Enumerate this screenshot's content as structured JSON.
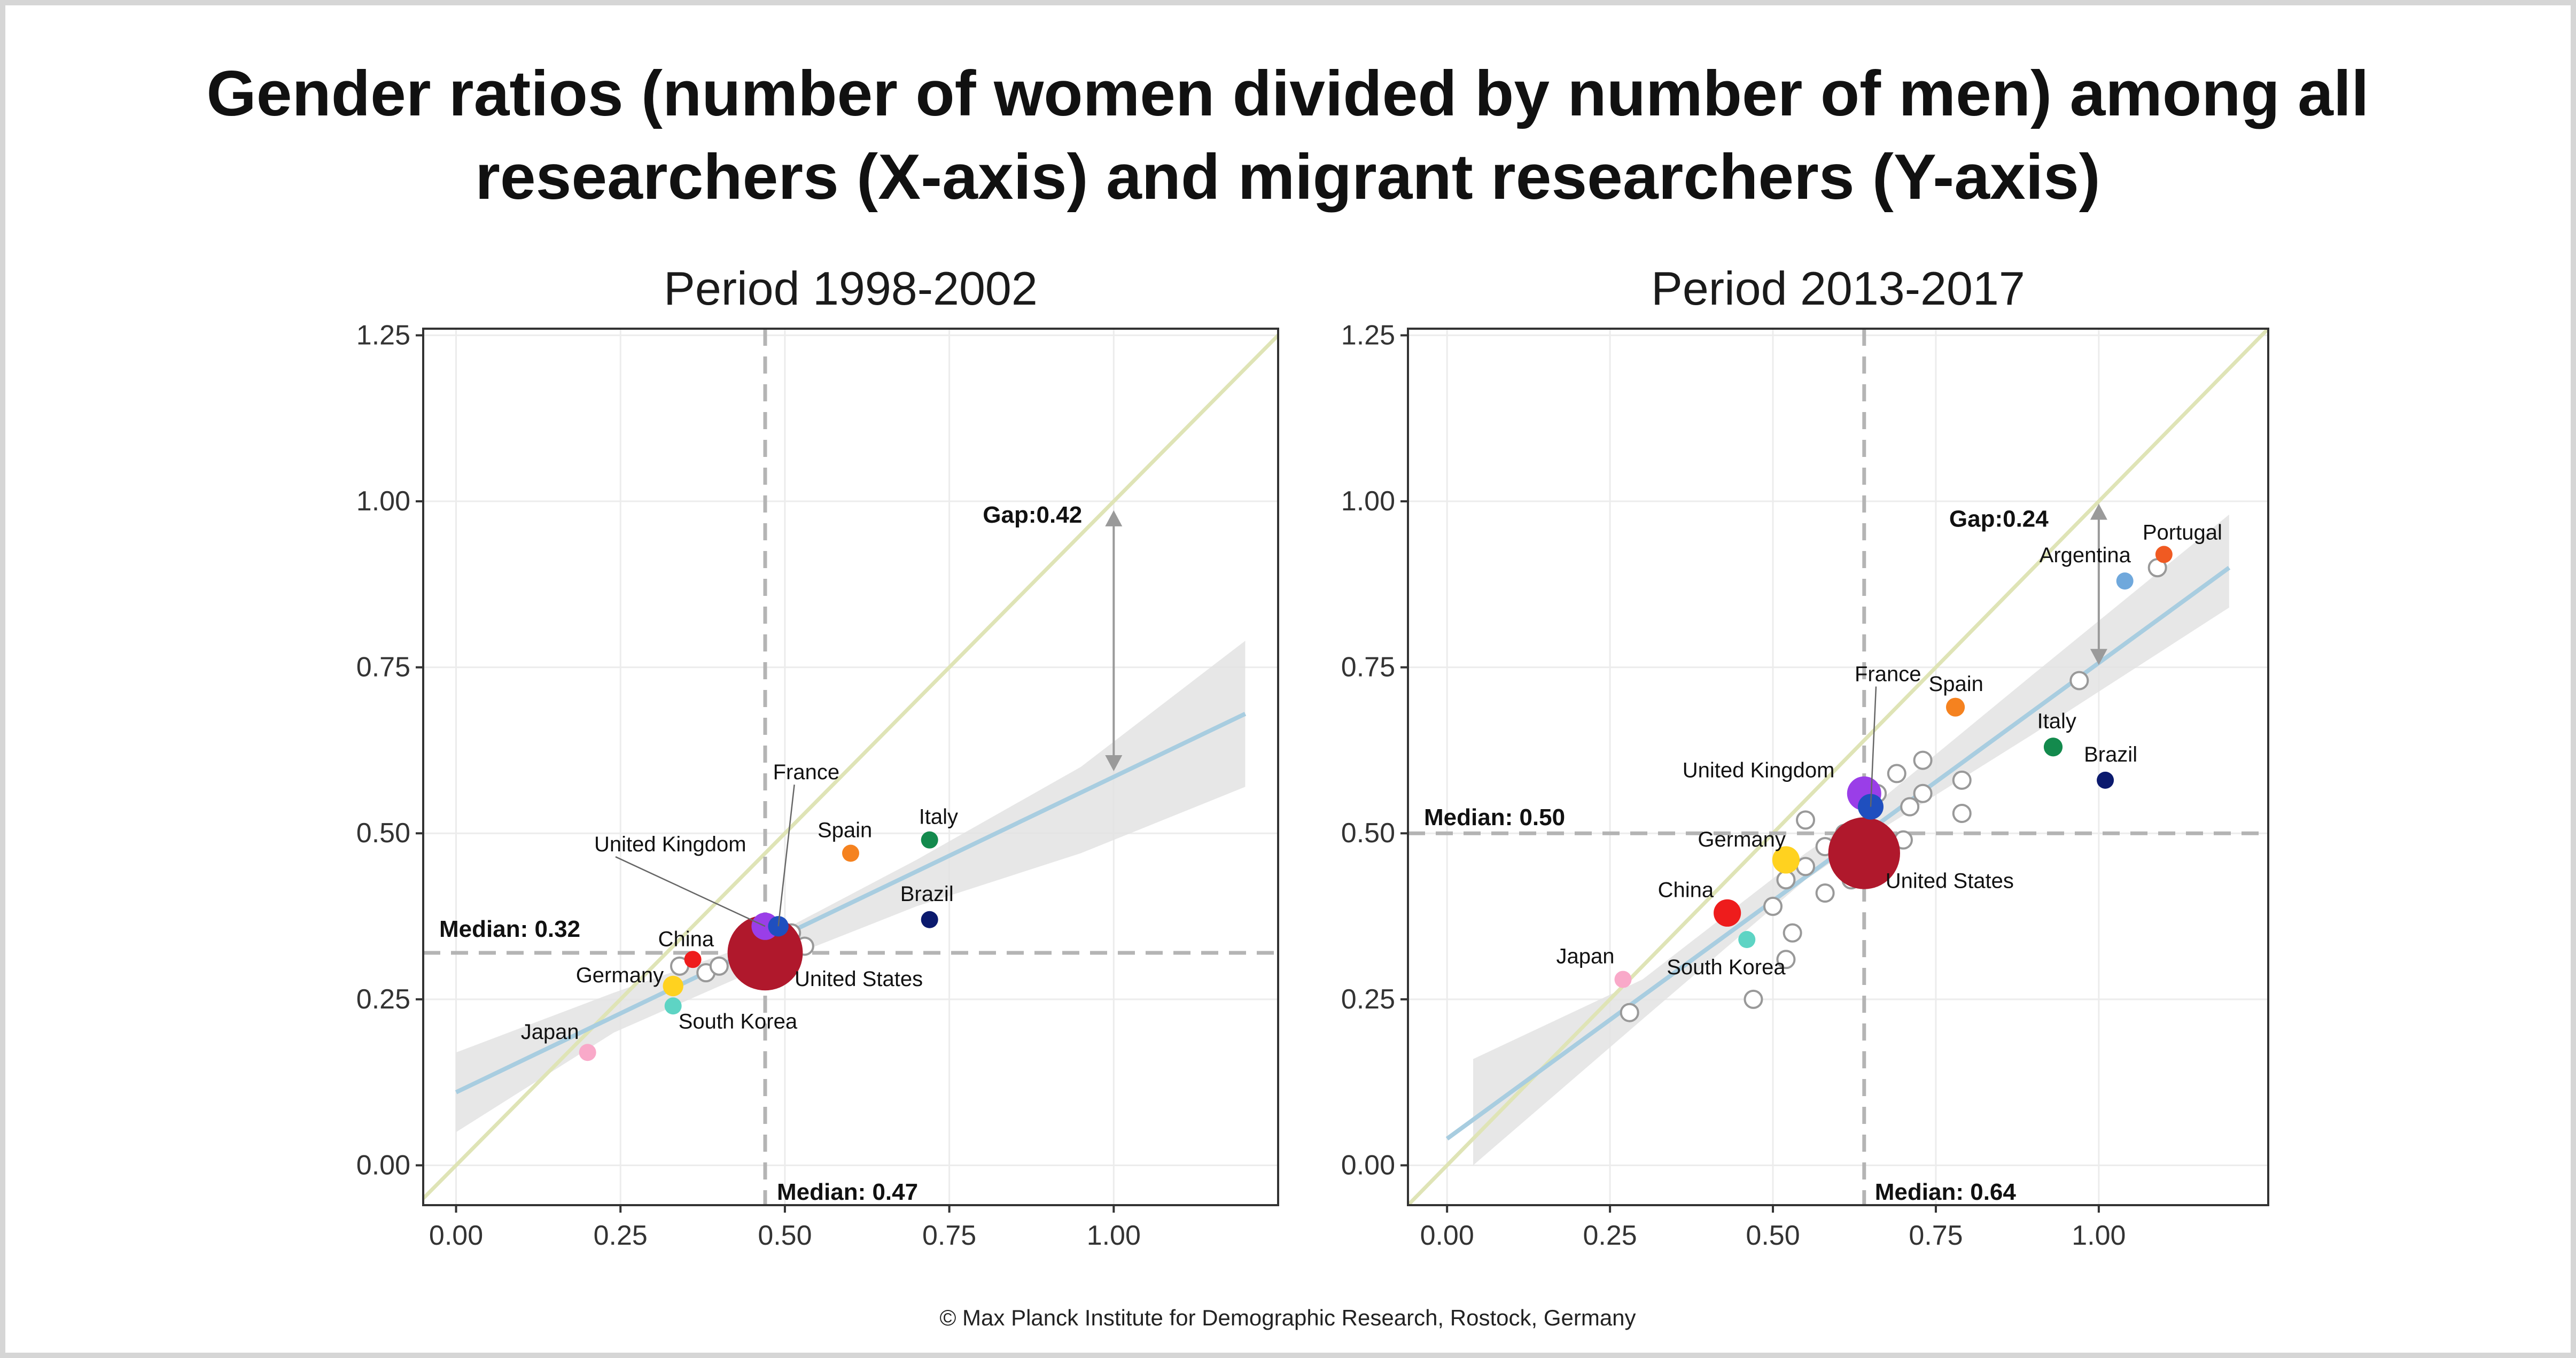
{
  "title_lines": [
    "Gender ratios (number of women divided by number of men) among all",
    "researchers (X-axis) and migrant researchers (Y-axis)"
  ],
  "footer": "© Max Planck Institute for Demographic Research, Rostock, Germany",
  "colors": {
    "identity_line": "#dfe4b6",
    "regression_line": "#a8cde0",
    "confidence_band": "#e3e3e3",
    "median_line": "#b4b4b4",
    "gap_arrow": "#9a9a9a",
    "panel_border": "#333333",
    "grid": "#ececec",
    "other_country_stroke": "#999999"
  },
  "chart_data": [
    {
      "type": "scatter",
      "title": "Period 1998-2002",
      "xlim": [
        -0.05,
        1.25
      ],
      "ylim": [
        -0.06,
        1.26
      ],
      "x_ticks": [
        0,
        0.25,
        0.5,
        0.75,
        1.0
      ],
      "x_tick_labels": [
        "0.00",
        "0.25",
        "0.50",
        "0.75",
        "1.00"
      ],
      "y_ticks": [
        0,
        0.25,
        0.5,
        0.75,
        1.0,
        1.25
      ],
      "y_tick_labels": [
        "0.00",
        "0.25",
        "0.50",
        "0.75",
        "1.00",
        "1.25"
      ],
      "grid": true,
      "identity_line": true,
      "median_x": {
        "value": 0.47,
        "label": "Median: 0.47"
      },
      "median_y": {
        "value": 0.32,
        "label": "Median: 0.32"
      },
      "regression": {
        "x": [
          0.0,
          1.2
        ],
        "y": [
          0.11,
          0.68
        ]
      },
      "confidence_band": {
        "x": [
          0.0,
          0.24,
          0.47,
          0.7,
          0.95,
          1.2
        ],
        "lower": [
          0.05,
          0.2,
          0.3,
          0.39,
          0.47,
          0.57
        ],
        "upper": [
          0.17,
          0.26,
          0.34,
          0.46,
          0.6,
          0.79
        ]
      },
      "gap": {
        "x": 1.0,
        "y_from": 0.6,
        "y_to": 0.98,
        "label": "Gap:0.42"
      },
      "labeled_points": [
        {
          "name": "Japan",
          "x": 0.2,
          "y": 0.17,
          "color": "#f9a9c9",
          "size": 1
        },
        {
          "name": "South Korea",
          "x": 0.33,
          "y": 0.24,
          "color": "#5ed4c4",
          "size": 1
        },
        {
          "name": "Germany",
          "x": 0.33,
          "y": 0.27,
          "color": "#ffd21f",
          "size": 1.2
        },
        {
          "name": "China",
          "x": 0.36,
          "y": 0.31,
          "color": "#ee1c1c",
          "size": 1
        },
        {
          "name": "United Kingdom",
          "x": 0.47,
          "y": 0.36,
          "color": "#9a3ee8",
          "size": 1.6
        },
        {
          "name": "France",
          "x": 0.49,
          "y": 0.36,
          "color": "#1f4fbf",
          "size": 1.2
        },
        {
          "name": "United States",
          "x": 0.47,
          "y": 0.32,
          "color": "#b0182c",
          "size": 4.4
        },
        {
          "name": "Spain",
          "x": 0.6,
          "y": 0.47,
          "color": "#f5821f",
          "size": 1
        },
        {
          "name": "Italy",
          "x": 0.72,
          "y": 0.49,
          "color": "#138a4d",
          "size": 1
        },
        {
          "name": "Brazil",
          "x": 0.72,
          "y": 0.37,
          "color": "#0b1a6e",
          "size": 1
        }
      ],
      "other_points": [
        {
          "x": 0.34,
          "y": 0.3
        },
        {
          "x": 0.38,
          "y": 0.29
        },
        {
          "x": 0.4,
          "y": 0.3
        },
        {
          "x": 0.51,
          "y": 0.35
        },
        {
          "x": 0.53,
          "y": 0.33
        }
      ]
    },
    {
      "type": "scatter",
      "title": "Period 2013-2017",
      "xlim": [
        -0.06,
        1.26
      ],
      "ylim": [
        -0.06,
        1.26
      ],
      "x_ticks": [
        0,
        0.25,
        0.5,
        0.75,
        1.0
      ],
      "x_tick_labels": [
        "0.00",
        "0.25",
        "0.50",
        "0.75",
        "1.00"
      ],
      "y_ticks": [
        0,
        0.25,
        0.5,
        0.75,
        1.0,
        1.25
      ],
      "y_tick_labels": [
        "0.00",
        "0.25",
        "0.50",
        "0.75",
        "1.00",
        "1.25"
      ],
      "grid": true,
      "identity_line": true,
      "median_x": {
        "value": 0.64,
        "label": "Median: 0.64"
      },
      "median_y": {
        "value": 0.5,
        "label": "Median: 0.50"
      },
      "regression": {
        "x": [
          0.0,
          1.2
        ],
        "y": [
          0.04,
          0.9
        ]
      },
      "confidence_band": {
        "x": [
          0.04,
          0.3,
          0.55,
          0.64,
          0.9,
          1.2
        ],
        "lower": [
          0.0,
          0.22,
          0.43,
          0.49,
          0.65,
          0.84
        ],
        "upper": [
          0.16,
          0.28,
          0.47,
          0.53,
          0.74,
          0.98
        ]
      },
      "gap": {
        "x": 1.0,
        "y_from": 0.76,
        "y_to": 0.99,
        "label": "Gap:0.24"
      },
      "labeled_points": [
        {
          "name": "Japan",
          "x": 0.27,
          "y": 0.28,
          "color": "#f9a9c9",
          "size": 1
        },
        {
          "name": "South Korea",
          "x": 0.46,
          "y": 0.34,
          "color": "#5ed4c4",
          "size": 1
        },
        {
          "name": "China",
          "x": 0.43,
          "y": 0.38,
          "color": "#ee1c1c",
          "size": 1.6
        },
        {
          "name": "Germany",
          "x": 0.52,
          "y": 0.46,
          "color": "#ffd21f",
          "size": 1.6
        },
        {
          "name": "United Kingdom",
          "x": 0.64,
          "y": 0.56,
          "color": "#9a3ee8",
          "size": 2
        },
        {
          "name": "France",
          "x": 0.65,
          "y": 0.54,
          "color": "#1f4fbf",
          "size": 1.5
        },
        {
          "name": "United States",
          "x": 0.64,
          "y": 0.47,
          "color": "#b0182c",
          "size": 4.2
        },
        {
          "name": "Spain",
          "x": 0.78,
          "y": 0.69,
          "color": "#f5821f",
          "size": 1.1
        },
        {
          "name": "Italy",
          "x": 0.93,
          "y": 0.63,
          "color": "#138a4d",
          "size": 1.1
        },
        {
          "name": "Brazil",
          "x": 1.01,
          "y": 0.58,
          "color": "#0b1a6e",
          "size": 1
        },
        {
          "name": "Argentina",
          "x": 1.04,
          "y": 0.88,
          "color": "#6fa8dc",
          "size": 1
        },
        {
          "name": "Portugal",
          "x": 1.1,
          "y": 0.92,
          "color": "#f05a22",
          "size": 1
        }
      ],
      "other_points": [
        {
          "x": 0.28,
          "y": 0.23
        },
        {
          "x": 0.47,
          "y": 0.25
        },
        {
          "x": 0.52,
          "y": 0.31
        },
        {
          "x": 0.53,
          "y": 0.35
        },
        {
          "x": 0.5,
          "y": 0.39
        },
        {
          "x": 0.52,
          "y": 0.43
        },
        {
          "x": 0.55,
          "y": 0.45
        },
        {
          "x": 0.58,
          "y": 0.41
        },
        {
          "x": 0.58,
          "y": 0.48
        },
        {
          "x": 0.61,
          "y": 0.5
        },
        {
          "x": 0.55,
          "y": 0.52
        },
        {
          "x": 0.62,
          "y": 0.43
        },
        {
          "x": 0.65,
          "y": 0.44
        },
        {
          "x": 0.66,
          "y": 0.56
        },
        {
          "x": 0.69,
          "y": 0.59
        },
        {
          "x": 0.71,
          "y": 0.54
        },
        {
          "x": 0.73,
          "y": 0.56
        },
        {
          "x": 0.73,
          "y": 0.61
        },
        {
          "x": 0.7,
          "y": 0.49
        },
        {
          "x": 0.79,
          "y": 0.58
        },
        {
          "x": 0.79,
          "y": 0.53
        },
        {
          "x": 0.97,
          "y": 0.73
        },
        {
          "x": 1.09,
          "y": 0.9
        }
      ]
    }
  ]
}
